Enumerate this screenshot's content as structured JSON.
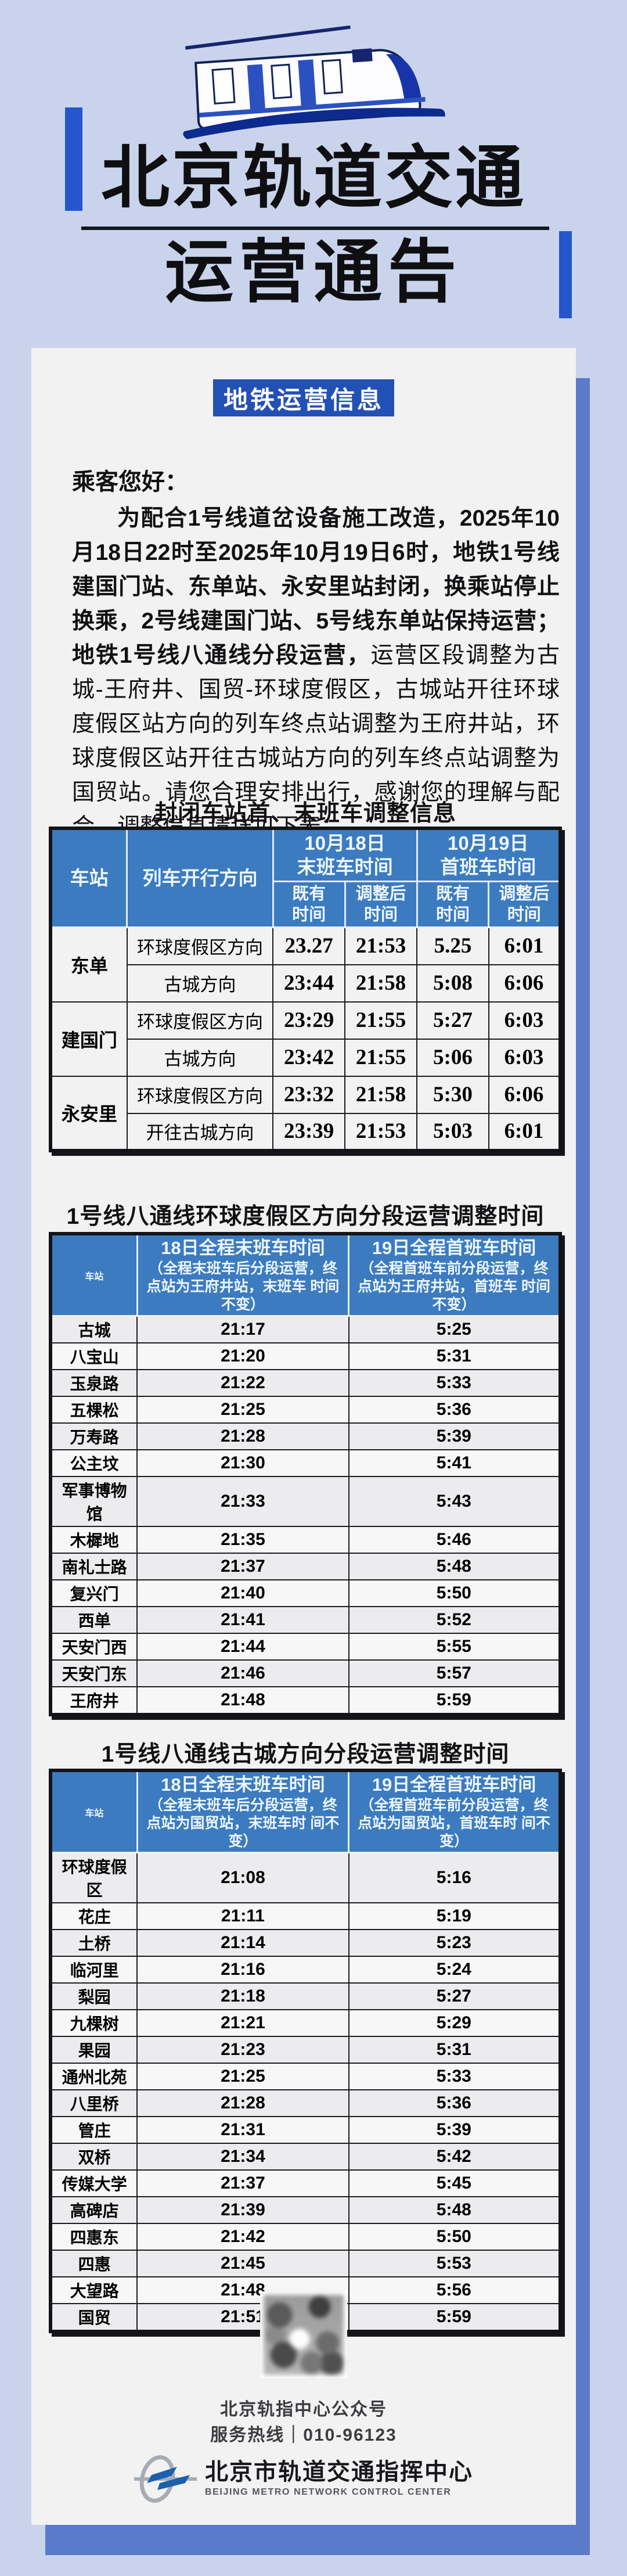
{
  "palette": {
    "page_bg": "#c9d4ec",
    "card_bg": "#f2f2f3",
    "card_shadow": "#5b7ac9",
    "accent_blue": "#2456cd",
    "badge_blue": "#2350b5",
    "table_header_blue": "#3c7bbf",
    "text_black": "#101013"
  },
  "header": {
    "title_line1": "北京轨道交通",
    "title_line2": "运营通告",
    "train_icon": "train-illustration"
  },
  "badge": {
    "label": "地铁运营信息"
  },
  "notice": {
    "greeting": "乘客您好：",
    "paragraph_segments": [
      {
        "text": "为配合1号线道岔设备施工改造，",
        "bold": true
      },
      {
        "text": "2025年10月18日22时至2025年10月19日6时，地铁1号线建国门站、东单站、永安里站封闭，换乘站停止换乘，2号线建国门站、5号线东单站保持运营；地铁1号线八通线分段运营，",
        "bold": true
      },
      {
        "text": "运营区段调整为古城-王府井、国贸-环球度假区，古城站开往环球度假区站方向的列车终点站调整为王府井站，环球度假区站开往古城站方向的列车终点站调整为国贸站。请您合理安排出行，感谢您的理解与配合。调整信息请详见下表：",
        "bold": false
      }
    ]
  },
  "table1": {
    "title": "封闭车站首、末班车调整信息",
    "headers": {
      "station": "车站",
      "direction": "列车开行方向",
      "group1_l1": "10月18日",
      "group1_l2": "末班车时间",
      "group2_l1": "10月19日",
      "group2_l2": "首班车时间",
      "sub_existing_l1": "既有",
      "sub_existing_l2": "时间",
      "sub_adjusted_l1": "调整后",
      "sub_adjusted_l2": "时间"
    },
    "rows": [
      {
        "station": "东单",
        "span": 2,
        "direction": "环球度假区方向",
        "times": [
          "23.27",
          "21:53",
          "5.25",
          "6:01"
        ]
      },
      {
        "direction": "古城方向",
        "times": [
          "23:44",
          "21:58",
          "5:08",
          "6:06"
        ]
      },
      {
        "station": "建国门",
        "span": 2,
        "direction": "环球度假区方向",
        "times": [
          "23:29",
          "21:55",
          "5:27",
          "6:03"
        ]
      },
      {
        "direction": "古城方向",
        "times": [
          "23:42",
          "21:55",
          "5:06",
          "6:03"
        ]
      },
      {
        "station": "永安里",
        "span": 2,
        "direction": "环球度假区方向",
        "times": [
          "23:32",
          "21:58",
          "5:30",
          "6:06"
        ]
      },
      {
        "direction": "开往古城方向",
        "times": [
          "23:39",
          "21:53",
          "5:03",
          "6:01"
        ]
      }
    ]
  },
  "table2": {
    "title": "1号线八通线环球度假区方向分段运营调整时间",
    "headers": {
      "station": "车站",
      "col1_main": "18日全程末班车时间",
      "col1_note": "（全程末班车后分段运营，终点站为王府井站，末班车 时间不变）",
      "col2_main": "19日全程首班车时间",
      "col2_note": "（全程首班车前分段运营，终点站为王府井站，首班车 时间不变）"
    },
    "rows": [
      [
        "古城",
        "21:17",
        "5:25"
      ],
      [
        "八宝山",
        "21:20",
        "5:31"
      ],
      [
        "玉泉路",
        "21:22",
        "5:33"
      ],
      [
        "五棵松",
        "21:25",
        "5:36"
      ],
      [
        "万寿路",
        "21:28",
        "5:39"
      ],
      [
        "公主坟",
        "21:30",
        "5:41"
      ],
      [
        "军事博物馆",
        "21:33",
        "5:43"
      ],
      [
        "木樨地",
        "21:35",
        "5:46"
      ],
      [
        "南礼士路",
        "21:37",
        "5:48"
      ],
      [
        "复兴门",
        "21:40",
        "5:50"
      ],
      [
        "西单",
        "21:41",
        "5:52"
      ],
      [
        "天安门西",
        "21:44",
        "5:55"
      ],
      [
        "天安门东",
        "21:46",
        "5:57"
      ],
      [
        "王府井",
        "21:48",
        "5:59"
      ]
    ]
  },
  "table3": {
    "title": "1号线八通线古城方向分段运营调整时间",
    "headers": {
      "station": "车站",
      "col1_main": "18日全程末班车时间",
      "col1_note": "（全程末班车后分段运营，终点站为国贸站，末班车时 间不变）",
      "col2_main": "19日全程首班车时间",
      "col2_note": "（全程首班车前分段运营，终点站为国贸站，首班车时 间不变）"
    },
    "rows": [
      [
        "环球度假区",
        "21:08",
        "5:16"
      ],
      [
        "花庄",
        "21:11",
        "5:19"
      ],
      [
        "土桥",
        "21:14",
        "5:23"
      ],
      [
        "临河里",
        "21:16",
        "5:24"
      ],
      [
        "梨园",
        "21:18",
        "5:27"
      ],
      [
        "九棵树",
        "21:21",
        "5:29"
      ],
      [
        "果园",
        "21:23",
        "5:31"
      ],
      [
        "通州北苑",
        "21:25",
        "5:33"
      ],
      [
        "八里桥",
        "21:28",
        "5:36"
      ],
      [
        "管庄",
        "21:31",
        "5:39"
      ],
      [
        "双桥",
        "21:34",
        "5:42"
      ],
      [
        "传媒大学",
        "21:37",
        "5:45"
      ],
      [
        "高碑店",
        "21:39",
        "5:48"
      ],
      [
        "四惠东",
        "21:42",
        "5:50"
      ],
      [
        "四惠",
        "21:45",
        "5:53"
      ],
      [
        "大望路",
        "21:48",
        "5:56"
      ],
      [
        "国贸",
        "21:51",
        "5:59"
      ]
    ]
  },
  "footer": {
    "qr_icon": "qr-code",
    "account_line": "北京轨指中心公众号",
    "hotline_line": "服务热线｜010-96123",
    "org_cn": "北京市轨道交通指挥中心",
    "org_en": "BEIJING METRO NETWORK CONTROL CENTER"
  }
}
